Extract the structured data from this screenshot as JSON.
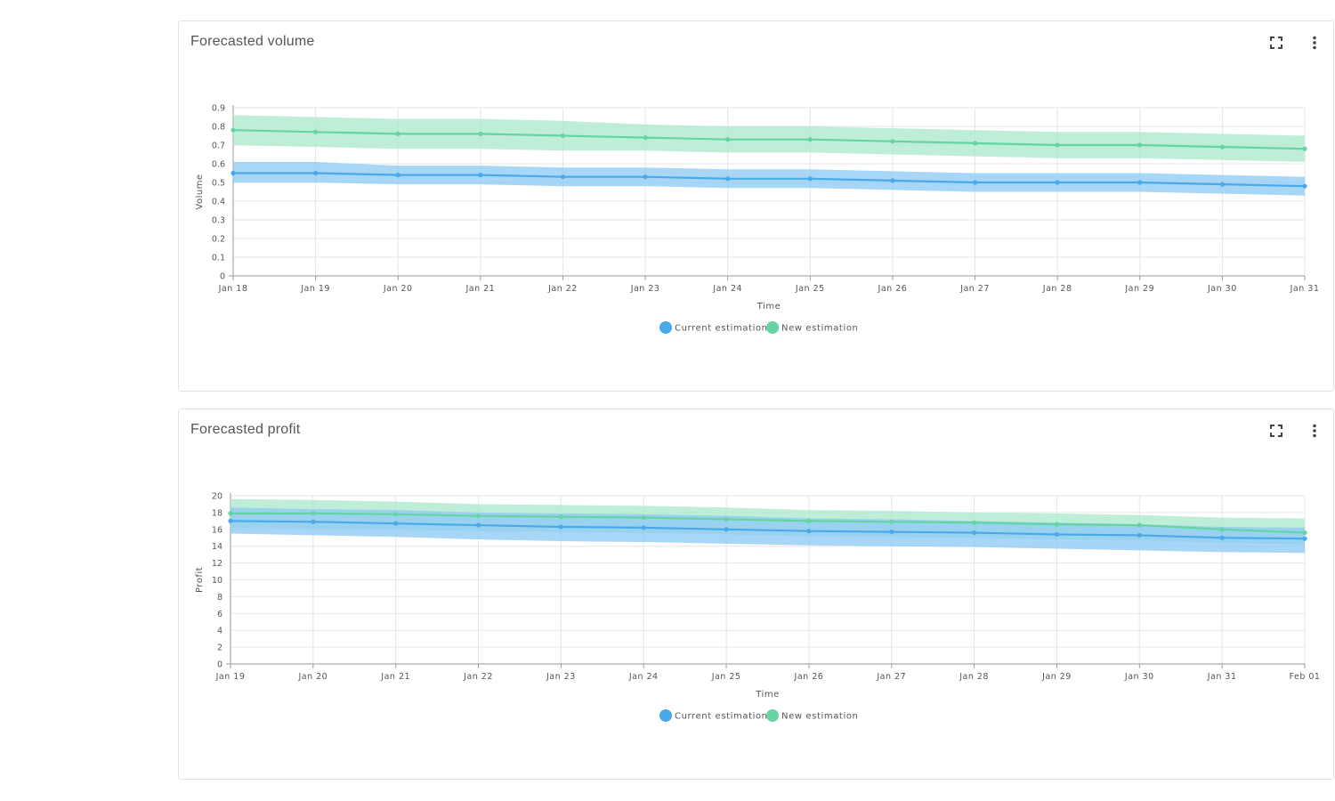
{
  "colors": {
    "current": "#4aa9ea",
    "current_band": "#8ecbf3",
    "new": "#64d4a3",
    "new_band": "#ace9cd",
    "grid": "#e6e6e6",
    "axis": "#9a9a9a"
  },
  "icons": {
    "expand": "fullscreen-icon",
    "more": "more-vert-icon"
  },
  "charts": [
    {
      "id": "volume",
      "title": "Forecasted volume",
      "chart_data": {
        "type": "line",
        "x": [
          "Jan 18",
          "Jan 19",
          "Jan 20",
          "Jan 21",
          "Jan 22",
          "Jan 23",
          "Jan 24",
          "Jan 25",
          "Jan 26",
          "Jan 27",
          "Jan 28",
          "Jan 29",
          "Jan 30",
          "Jan 31"
        ],
        "xlabel": "Time",
        "ylabel": "Volume",
        "ylim": [
          0,
          0.9
        ],
        "yticks": [
          0,
          0.1,
          0.2,
          0.3,
          0.4,
          0.5,
          0.6,
          0.7,
          0.8,
          0.9
        ],
        "ytick_labels": [
          "0",
          "0.1",
          "0.2",
          "0.3",
          "0.4",
          "0.5",
          "0.6",
          "0.7",
          "0.8",
          "0.9"
        ],
        "grid": true,
        "legend_position": "bottom",
        "series": [
          {
            "name": "Current estimation",
            "values": [
              0.55,
              0.55,
              0.54,
              0.54,
              0.53,
              0.53,
              0.52,
              0.52,
              0.51,
              0.5,
              0.5,
              0.5,
              0.49,
              0.48
            ],
            "lower": [
              0.5,
              0.5,
              0.49,
              0.49,
              0.48,
              0.48,
              0.47,
              0.47,
              0.46,
              0.45,
              0.45,
              0.45,
              0.44,
              0.43
            ],
            "upper": [
              0.61,
              0.61,
              0.59,
              0.59,
              0.58,
              0.58,
              0.57,
              0.57,
              0.56,
              0.55,
              0.55,
              0.55,
              0.54,
              0.53
            ]
          },
          {
            "name": "New estimation",
            "values": [
              0.78,
              0.77,
              0.76,
              0.76,
              0.75,
              0.74,
              0.73,
              0.73,
              0.72,
              0.71,
              0.7,
              0.7,
              0.69,
              0.68
            ],
            "lower": [
              0.7,
              0.69,
              0.68,
              0.68,
              0.67,
              0.67,
              0.66,
              0.66,
              0.65,
              0.64,
              0.63,
              0.63,
              0.62,
              0.61
            ],
            "upper": [
              0.86,
              0.85,
              0.84,
              0.84,
              0.83,
              0.81,
              0.8,
              0.8,
              0.79,
              0.78,
              0.77,
              0.77,
              0.76,
              0.75
            ]
          }
        ]
      }
    },
    {
      "id": "profit",
      "title": "Forecasted profit",
      "chart_data": {
        "type": "line",
        "x": [
          "Jan 19",
          "Jan 20",
          "Jan 21",
          "Jan 22",
          "Jan 23",
          "Jan 24",
          "Jan 25",
          "Jan 26",
          "Jan 27",
          "Jan 28",
          "Jan 29",
          "Jan 30",
          "Jan 31",
          "Feb 01"
        ],
        "xlabel": "Time",
        "ylabel": "Profit",
        "ylim": [
          0,
          20
        ],
        "yticks": [
          0,
          2,
          4,
          6,
          8,
          10,
          12,
          14,
          16,
          18,
          20
        ],
        "ytick_labels": [
          "0",
          "2",
          "4",
          "6",
          "8",
          "10",
          "12",
          "14",
          "16",
          "18",
          "20"
        ],
        "grid": true,
        "legend_position": "bottom",
        "series": [
          {
            "name": "Current estimation",
            "values": [
              17.0,
              16.9,
              16.7,
              16.5,
              16.3,
              16.2,
              16.0,
              15.8,
              15.7,
              15.6,
              15.4,
              15.3,
              15.0,
              14.9
            ],
            "lower": [
              15.5,
              15.3,
              15.1,
              14.8,
              14.6,
              14.5,
              14.3,
              14.1,
              14.0,
              13.9,
              13.7,
              13.5,
              13.3,
              13.2
            ],
            "upper": [
              18.6,
              18.4,
              18.3,
              18.0,
              17.9,
              17.8,
              17.6,
              17.3,
              17.2,
              17.0,
              16.8,
              16.6,
              16.3,
              16.2
            ]
          },
          {
            "name": "New estimation",
            "values": [
              17.9,
              17.9,
              17.8,
              17.6,
              17.5,
              17.4,
              17.2,
              17.0,
              16.9,
              16.8,
              16.6,
              16.5,
              16.0,
              15.6
            ],
            "lower": [
              16.2,
              16.1,
              16.0,
              15.8,
              15.7,
              15.6,
              15.4,
              15.2,
              15.1,
              15.0,
              14.8,
              14.7,
              14.4,
              14.2
            ],
            "upper": [
              19.6,
              19.5,
              19.3,
              19.0,
              18.9,
              18.8,
              18.6,
              18.3,
              18.2,
              18.0,
              17.9,
              17.7,
              17.4,
              17.3
            ]
          }
        ]
      }
    }
  ]
}
